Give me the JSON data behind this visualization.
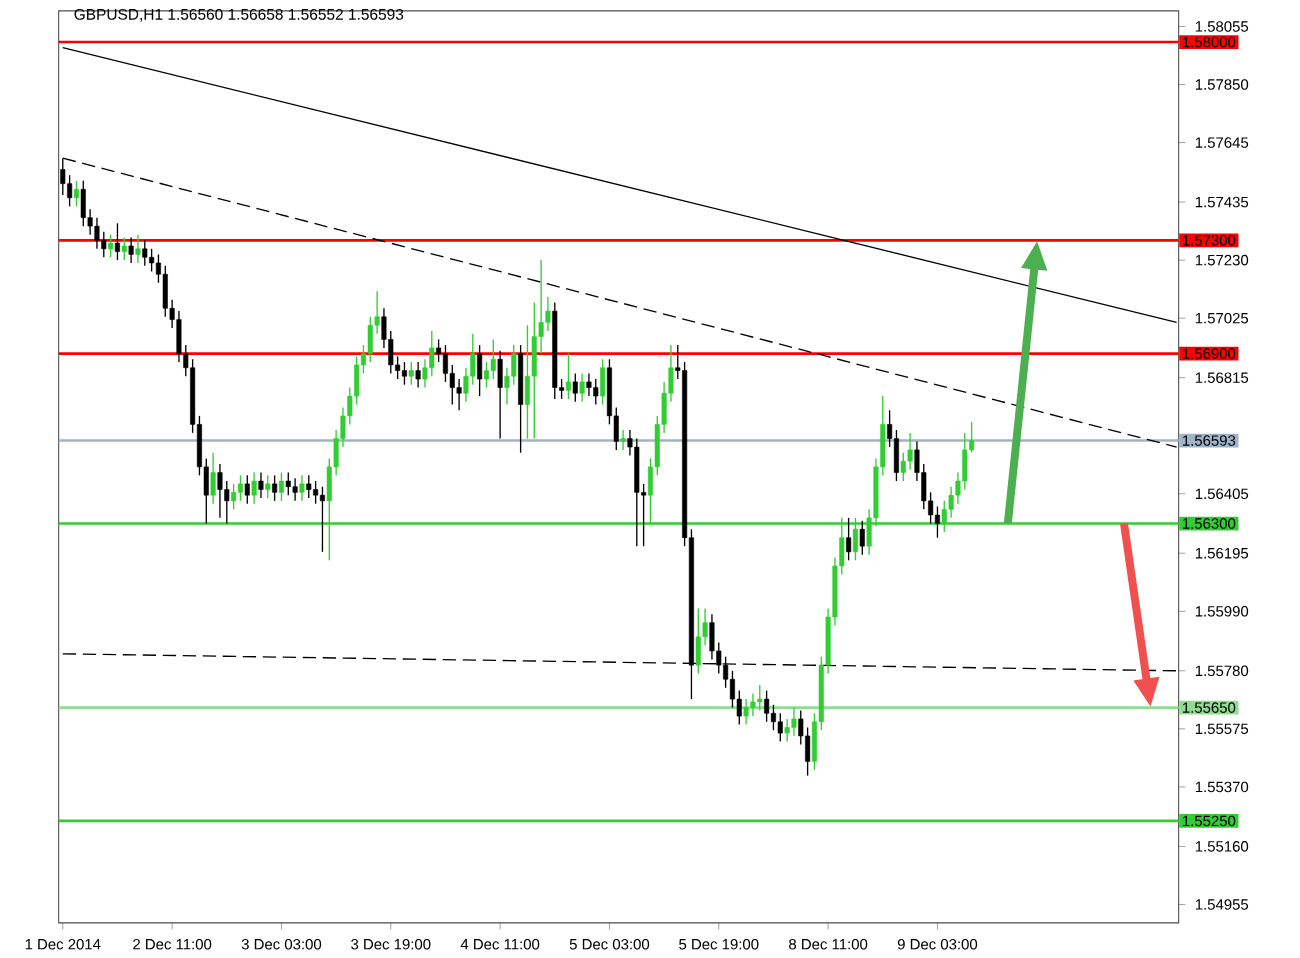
{
  "chart_data": {
    "type": "candlestick",
    "title": "GBPUSD,H1  1.56560 1.56658 1.56552 1.56593",
    "categories": [
      "1 Dec 2014",
      null,
      null,
      null,
      null,
      null,
      null,
      null,
      null,
      null,
      null,
      null,
      null,
      null,
      null,
      null,
      "2 Dec 11:00",
      null,
      null,
      null,
      null,
      null,
      null,
      null,
      null,
      null,
      null,
      null,
      null,
      null,
      null,
      null,
      "3 Dec 03:00",
      null,
      null,
      null,
      null,
      null,
      null,
      null,
      null,
      null,
      null,
      null,
      null,
      null,
      null,
      null,
      "3 Dec 19:00",
      null,
      null,
      null,
      null,
      null,
      null,
      null,
      null,
      null,
      null,
      null,
      null,
      null,
      null,
      null,
      "4 Dec 11:00",
      null,
      null,
      null,
      null,
      null,
      null,
      null,
      null,
      null,
      null,
      null,
      null,
      null,
      null,
      null,
      "5 Dec 03:00",
      null,
      null,
      null,
      null,
      null,
      null,
      null,
      null,
      null,
      null,
      null,
      null,
      null,
      null,
      null,
      "5 Dec 19:00",
      null,
      null,
      null,
      null,
      null,
      null,
      null,
      null,
      null,
      null,
      null,
      null,
      null,
      null,
      null,
      "8 Dec 11:00",
      null,
      null,
      null,
      null,
      null,
      null,
      null,
      null,
      null,
      null,
      null,
      null,
      null,
      null,
      null,
      "9 Dec 03:00",
      null,
      null,
      null,
      null,
      null,
      null,
      null,
      null,
      null,
      null,
      null,
      null,
      null,
      null,
      null,
      null,
      null,
      null,
      null,
      null,
      null,
      null,
      null,
      null,
      null,
      null,
      null,
      null,
      null,
      null,
      null,
      null,
      null,
      null,
      null
    ],
    "ohlc": [
      [
        1.5755,
        1.5759,
        1.5746,
        1.575
      ],
      [
        1.575,
        1.5753,
        1.5742,
        1.5745
      ],
      [
        1.5745,
        1.5751,
        1.5742,
        1.5748
      ],
      [
        1.5748,
        1.5751,
        1.5735,
        1.5738
      ],
      [
        1.5738,
        1.5741,
        1.5732,
        1.5735
      ],
      [
        1.5735,
        1.5738,
        1.5727,
        1.573
      ],
      [
        1.573,
        1.5733,
        1.5724,
        1.5727
      ],
      [
        1.5727,
        1.5732,
        1.5724,
        1.5729
      ],
      [
        1.5729,
        1.5736,
        1.5723,
        1.5726
      ],
      [
        1.5726,
        1.5731,
        1.5723,
        1.5728
      ],
      [
        1.5728,
        1.5731,
        1.5722,
        1.5725
      ],
      [
        1.5725,
        1.5732,
        1.5722,
        1.5727
      ],
      [
        1.5727,
        1.573,
        1.5721,
        1.5724
      ],
      [
        1.5724,
        1.5727,
        1.5719,
        1.5722
      ],
      [
        1.5722,
        1.5725,
        1.5715,
        1.5718
      ],
      [
        1.5718,
        1.5721,
        1.5703,
        1.5706
      ],
      [
        1.5706,
        1.5709,
        1.5699,
        1.5702
      ],
      [
        1.5702,
        1.5705,
        1.5687,
        1.569
      ],
      [
        1.569,
        1.5693,
        1.5682,
        1.5685
      ],
      [
        1.5685,
        1.5688,
        1.5662,
        1.5665
      ],
      [
        1.5665,
        1.5668,
        1.5647,
        1.565
      ],
      [
        1.565,
        1.5653,
        1.563,
        1.564
      ],
      [
        1.564,
        1.5655,
        1.5637,
        1.5648
      ],
      [
        1.5648,
        1.5651,
        1.5632,
        1.5642
      ],
      [
        1.5642,
        1.5645,
        1.563,
        1.5638
      ],
      [
        1.5638,
        1.5644,
        1.5635,
        1.5641
      ],
      [
        1.5641,
        1.5647,
        1.5638,
        1.5644
      ],
      [
        1.5644,
        1.5647,
        1.5637,
        1.564
      ],
      [
        1.564,
        1.5648,
        1.5637,
        1.5645
      ],
      [
        1.5645,
        1.5648,
        1.5639,
        1.5642
      ],
      [
        1.5642,
        1.5647,
        1.5639,
        1.5644
      ],
      [
        1.5644,
        1.5647,
        1.5638,
        1.5641
      ],
      [
        1.5641,
        1.5648,
        1.5638,
        1.5645
      ],
      [
        1.5645,
        1.5648,
        1.564,
        1.5643
      ],
      [
        1.5643,
        1.5646,
        1.5638,
        1.5641
      ],
      [
        1.5641,
        1.5647,
        1.5638,
        1.5644
      ],
      [
        1.5644,
        1.5647,
        1.5639,
        1.5642
      ],
      [
        1.5642,
        1.5645,
        1.5637,
        1.564
      ],
      [
        1.564,
        1.5643,
        1.562,
        1.5638
      ],
      [
        1.5638,
        1.5653,
        1.5617,
        1.565
      ],
      [
        1.565,
        1.5663,
        1.5647,
        1.566
      ],
      [
        1.566,
        1.5671,
        1.5657,
        1.5668
      ],
      [
        1.5668,
        1.5678,
        1.5665,
        1.5675
      ],
      [
        1.5675,
        1.5689,
        1.5672,
        1.5686
      ],
      [
        1.5686,
        1.5693,
        1.5683,
        1.569
      ],
      [
        1.569,
        1.5703,
        1.5687,
        1.57
      ],
      [
        1.57,
        1.5712,
        1.5697,
        1.5703
      ],
      [
        1.5703,
        1.5706,
        1.5692,
        1.5695
      ],
      [
        1.5695,
        1.5698,
        1.5683,
        1.5686
      ],
      [
        1.5686,
        1.5689,
        1.5681,
        1.5684
      ],
      [
        1.5684,
        1.5687,
        1.5679,
        1.5682
      ],
      [
        1.5682,
        1.5687,
        1.5679,
        1.5684
      ],
      [
        1.5684,
        1.5687,
        1.5678,
        1.5681
      ],
      [
        1.5681,
        1.5688,
        1.5678,
        1.5685
      ],
      [
        1.5685,
        1.5698,
        1.5682,
        1.5692
      ],
      [
        1.5692,
        1.5695,
        1.5687,
        1.569
      ],
      [
        1.569,
        1.5693,
        1.568,
        1.5683
      ],
      [
        1.5683,
        1.5686,
        1.5672,
        1.5678
      ],
      [
        1.5678,
        1.5681,
        1.567,
        1.5676
      ],
      [
        1.5676,
        1.5685,
        1.5673,
        1.5682
      ],
      [
        1.5682,
        1.5697,
        1.5679,
        1.569
      ],
      [
        1.569,
        1.5693,
        1.5675,
        1.5681
      ],
      [
        1.5681,
        1.5687,
        1.5678,
        1.5684
      ],
      [
        1.5684,
        1.5695,
        1.5681,
        1.5688
      ],
      [
        1.5688,
        1.5691,
        1.566,
        1.5678
      ],
      [
        1.5678,
        1.5685,
        1.5672,
        1.5682
      ],
      [
        1.5682,
        1.5693,
        1.5679,
        1.569
      ],
      [
        1.569,
        1.5693,
        1.5655,
        1.5672
      ],
      [
        1.5672,
        1.57,
        1.566,
        1.5682
      ],
      [
        1.5682,
        1.5708,
        1.566,
        1.5696
      ],
      [
        1.5696,
        1.5723,
        1.569,
        1.5701
      ],
      [
        1.5701,
        1.571,
        1.5698,
        1.5705
      ],
      [
        1.5705,
        1.5708,
        1.5674,
        1.5678
      ],
      [
        1.5678,
        1.5681,
        1.5674,
        1.5677
      ],
      [
        1.5677,
        1.569,
        1.5674,
        1.568
      ],
      [
        1.568,
        1.5683,
        1.5673,
        1.5676
      ],
      [
        1.5676,
        1.5683,
        1.5673,
        1.568
      ],
      [
        1.568,
        1.5683,
        1.5675,
        1.5678
      ],
      [
        1.5678,
        1.5681,
        1.5672,
        1.5675
      ],
      [
        1.5675,
        1.5688,
        1.5672,
        1.5685
      ],
      [
        1.5685,
        1.5688,
        1.5665,
        1.5668
      ],
      [
        1.5668,
        1.5671,
        1.5656,
        1.5659
      ],
      [
        1.5659,
        1.5663,
        1.5656,
        1.566
      ],
      [
        1.566,
        1.5663,
        1.5654,
        1.5657
      ],
      [
        1.5657,
        1.566,
        1.5622,
        1.5641
      ],
      [
        1.5641,
        1.5644,
        1.5622,
        1.564
      ],
      [
        1.564,
        1.5653,
        1.563,
        1.565
      ],
      [
        1.565,
        1.5668,
        1.5647,
        1.5665
      ],
      [
        1.5665,
        1.568,
        1.5662,
        1.5676
      ],
      [
        1.5676,
        1.5693,
        1.5673,
        1.5685
      ],
      [
        1.5685,
        1.5693,
        1.5681,
        1.5684
      ],
      [
        1.5684,
        1.5687,
        1.5622,
        1.5625
      ],
      [
        1.5625,
        1.5628,
        1.5568,
        1.558
      ],
      [
        1.558,
        1.56,
        1.5577,
        1.559
      ],
      [
        1.559,
        1.56,
        1.5587,
        1.5595
      ],
      [
        1.5595,
        1.5598,
        1.5582,
        1.5585
      ],
      [
        1.5585,
        1.5588,
        1.5577,
        1.558
      ],
      [
        1.558,
        1.5583,
        1.5572,
        1.5575
      ],
      [
        1.5575,
        1.5578,
        1.5565,
        1.5568
      ],
      [
        1.5568,
        1.5571,
        1.5559,
        1.5562
      ],
      [
        1.5562,
        1.5568,
        1.5559,
        1.5565
      ],
      [
        1.5565,
        1.557,
        1.5562,
        1.5567
      ],
      [
        1.5567,
        1.5573,
        1.5564,
        1.5568
      ],
      [
        1.5568,
        1.5571,
        1.556,
        1.5563
      ],
      [
        1.5563,
        1.5566,
        1.5557,
        1.556
      ],
      [
        1.556,
        1.5563,
        1.5553,
        1.5556
      ],
      [
        1.5556,
        1.5561,
        1.5553,
        1.5558
      ],
      [
        1.5558,
        1.5565,
        1.5555,
        1.5561
      ],
      [
        1.5561,
        1.5564,
        1.5552,
        1.5555
      ],
      [
        1.5555,
        1.5558,
        1.5541,
        1.5546
      ],
      [
        1.5546,
        1.5563,
        1.5543,
        1.556
      ],
      [
        1.556,
        1.5583,
        1.5557,
        1.558
      ],
      [
        1.558,
        1.56,
        1.5577,
        1.5597
      ],
      [
        1.5597,
        1.5618,
        1.5594,
        1.5615
      ],
      [
        1.5615,
        1.5632,
        1.5612,
        1.5625
      ],
      [
        1.5625,
        1.5632,
        1.5617,
        1.562
      ],
      [
        1.562,
        1.5632,
        1.5617,
        1.5628
      ],
      [
        1.5628,
        1.5631,
        1.5619,
        1.5622
      ],
      [
        1.5622,
        1.5635,
        1.5619,
        1.5632
      ],
      [
        1.5632,
        1.5653,
        1.5629,
        1.565
      ],
      [
        1.565,
        1.5675,
        1.5647,
        1.5665
      ],
      [
        1.5665,
        1.567,
        1.5657,
        1.566
      ],
      [
        1.566,
        1.5663,
        1.5645,
        1.5648
      ],
      [
        1.5648,
        1.5655,
        1.5645,
        1.5652
      ],
      [
        1.5652,
        1.5662,
        1.5649,
        1.5656
      ],
      [
        1.5656,
        1.5659,
        1.5645,
        1.5648
      ],
      [
        1.5648,
        1.5651,
        1.5635,
        1.5638
      ],
      [
        1.5638,
        1.5641,
        1.563,
        1.5633
      ],
      [
        1.5633,
        1.5636,
        1.5625,
        1.563
      ],
      [
        1.563,
        1.5638,
        1.5627,
        1.5635
      ],
      [
        1.5635,
        1.5643,
        1.5632,
        1.564
      ],
      [
        1.564,
        1.5648,
        1.5637,
        1.5645
      ],
      [
        1.5645,
        1.5662,
        1.5642,
        1.5656
      ],
      [
        1.5656,
        1.56658,
        1.56552,
        1.56593
      ],
      null,
      null,
      null,
      null,
      null,
      null,
      null,
      null,
      null,
      null,
      null,
      null,
      null,
      null,
      null,
      null,
      null,
      null,
      null,
      null,
      null,
      null,
      null,
      null,
      null,
      null,
      null,
      null,
      null,
      null
    ],
    "colors": [
      "#000000",
      "#000000",
      "#32cd32",
      "#000000",
      "#000000",
      "#000000",
      "#000000",
      "#32cd32",
      "#000000",
      "#32cd32",
      "#000000",
      "#32cd32",
      "#000000",
      "#000000",
      "#000000",
      "#000000",
      "#000000",
      "#000000",
      "#000000",
      "#000000",
      "#000000",
      "#000000",
      "#32cd32",
      "#000000",
      "#000000",
      "#32cd32",
      "#32cd32",
      "#000000",
      "#32cd32",
      "#000000",
      "#32cd32",
      "#000000",
      "#32cd32",
      "#000000",
      "#000000",
      "#32cd32",
      "#000000",
      "#000000",
      "#000000",
      "#32cd32",
      "#32cd32",
      "#32cd32",
      "#32cd32",
      "#32cd32",
      "#32cd32",
      "#32cd32",
      "#32cd32",
      "#000000",
      "#000000",
      "#000000",
      "#000000",
      "#32cd32",
      "#000000",
      "#32cd32",
      "#32cd32",
      "#000000",
      "#000000",
      "#000000",
      "#000000",
      "#32cd32",
      "#32cd32",
      "#000000",
      "#32cd32",
      "#32cd32",
      "#000000",
      "#32cd32",
      "#32cd32",
      "#000000",
      "#32cd32",
      "#32cd32",
      "#32cd32",
      "#32cd32",
      "#000000",
      "#000000",
      "#32cd32",
      "#000000",
      "#32cd32",
      "#000000",
      "#000000",
      "#32cd32",
      "#000000",
      "#000000",
      "#32cd32",
      "#000000",
      "#000000",
      "#000000",
      "#32cd32",
      "#32cd32",
      "#32cd32",
      "#32cd32",
      "#000000",
      "#000000",
      "#000000",
      "#32cd32",
      "#32cd32",
      "#000000",
      "#000000",
      "#000000",
      "#000000",
      "#000000",
      "#32cd32",
      "#32cd32",
      "#32cd32",
      "#000000",
      "#000000",
      "#000000",
      "#32cd32",
      "#32cd32",
      "#000000",
      "#000000",
      "#32cd32",
      "#32cd32",
      "#32cd32",
      "#32cd32",
      "#32cd32",
      "#000000",
      "#32cd32",
      "#000000",
      "#32cd32",
      "#32cd32",
      "#32cd32",
      "#000000",
      "#000000",
      "#32cd32",
      "#32cd32",
      "#000000",
      "#000000",
      "#000000",
      "#000000",
      "#32cd32",
      "#32cd32",
      "#32cd32",
      "#32cd32",
      "#32cd32",
      null,
      null,
      null,
      null,
      null,
      null,
      null,
      null,
      null,
      null,
      null,
      null,
      null,
      null,
      null,
      null,
      null,
      null,
      null,
      null,
      null,
      null,
      null,
      null,
      null,
      null,
      null,
      null,
      null,
      null
    ],
    "series": [
      {
        "type": "line",
        "color": "#000000",
        "line_style": "solid",
        "values": [
          1.5798,
          null,
          null,
          null,
          null,
          null,
          null,
          null,
          null,
          null,
          null,
          null,
          null,
          null,
          null,
          null,
          null,
          null,
          null,
          null,
          null,
          null,
          null,
          null,
          null,
          null,
          null,
          null,
          null,
          null,
          null,
          null,
          null,
          null,
          null,
          null,
          null,
          null,
          null,
          null,
          null,
          null,
          null,
          null,
          null,
          null,
          null,
          null,
          null,
          null,
          null,
          null,
          null,
          null,
          null,
          null,
          null,
          null,
          null,
          null,
          null,
          null,
          null,
          null,
          null,
          null,
          null,
          null,
          null,
          null,
          null,
          null,
          null,
          null,
          null,
          null,
          null,
          null,
          null,
          null,
          null,
          null,
          null,
          null,
          null,
          null,
          null,
          null,
          null,
          null,
          null,
          null,
          null,
          null,
          null,
          null,
          null,
          null,
          null,
          null,
          null,
          null,
          null,
          null,
          null,
          null,
          null,
          null,
          null,
          null,
          null,
          null,
          null,
          null,
          null,
          null,
          null,
          null,
          null,
          null,
          null,
          null,
          null,
          null,
          null,
          null,
          null,
          null,
          null,
          null,
          null,
          null,
          null,
          null,
          null,
          null,
          null,
          null,
          null,
          null,
          null,
          null,
          null,
          null,
          null,
          null,
          null,
          null,
          null,
          null,
          null,
          null,
          null,
          null,
          null,
          null,
          null,
          null,
          null,
          null,
          null,
          null,
          null,
          1.5701
        ]
      },
      {
        "type": "line",
        "color": "#000000",
        "line_style": "dashed",
        "values": [
          1.5759,
          null,
          null,
          null,
          null,
          null,
          null,
          null,
          null,
          null,
          null,
          null,
          null,
          null,
          null,
          null,
          null,
          null,
          null,
          null,
          null,
          null,
          null,
          null,
          null,
          null,
          null,
          null,
          null,
          null,
          null,
          null,
          null,
          null,
          null,
          null,
          null,
          null,
          null,
          null,
          null,
          null,
          null,
          null,
          null,
          null,
          null,
          null,
          null,
          null,
          null,
          null,
          null,
          null,
          null,
          null,
          null,
          null,
          null,
          null,
          null,
          null,
          null,
          null,
          null,
          null,
          null,
          null,
          null,
          null,
          null,
          null,
          null,
          null,
          null,
          null,
          null,
          null,
          null,
          null,
          null,
          null,
          null,
          null,
          null,
          null,
          null,
          null,
          null,
          null,
          null,
          null,
          null,
          null,
          null,
          null,
          null,
          null,
          null,
          null,
          null,
          null,
          null,
          null,
          null,
          null,
          null,
          null,
          null,
          null,
          null,
          null,
          null,
          null,
          null,
          null,
          null,
          null,
          null,
          null,
          null,
          null,
          null,
          null,
          null,
          null,
          null,
          null,
          null,
          null,
          null,
          null,
          null,
          null,
          null,
          null,
          null,
          null,
          null,
          null,
          null,
          null,
          null,
          null,
          null,
          null,
          null,
          null,
          null,
          null,
          null,
          null,
          null,
          null,
          null,
          null,
          null,
          null,
          null,
          null,
          null,
          null,
          null,
          1.5657
        ]
      },
      {
        "type": "line",
        "color": "#000000",
        "line_style": "dashed",
        "values": [
          1.5584,
          null,
          null,
          null,
          null,
          null,
          null,
          null,
          null,
          null,
          null,
          null,
          null,
          null,
          null,
          null,
          null,
          null,
          null,
          null,
          null,
          null,
          null,
          null,
          null,
          null,
          null,
          null,
          null,
          null,
          null,
          null,
          null,
          null,
          null,
          null,
          null,
          null,
          null,
          null,
          null,
          null,
          null,
          null,
          null,
          null,
          null,
          null,
          null,
          null,
          null,
          null,
          null,
          null,
          null,
          null,
          null,
          null,
          null,
          null,
          null,
          null,
          null,
          null,
          null,
          null,
          null,
          null,
          null,
          null,
          null,
          null,
          null,
          null,
          null,
          null,
          null,
          null,
          null,
          null,
          null,
          null,
          null,
          null,
          null,
          null,
          null,
          null,
          null,
          null,
          null,
          null,
          null,
          null,
          null,
          null,
          null,
          null,
          null,
          null,
          null,
          null,
          null,
          null,
          null,
          null,
          null,
          null,
          null,
          null,
          null,
          null,
          null,
          null,
          null,
          null,
          null,
          null,
          null,
          null,
          null,
          null,
          null,
          null,
          null,
          null,
          null,
          null,
          null,
          null,
          null,
          null,
          null,
          null,
          null,
          null,
          null,
          null,
          null,
          null,
          null,
          null,
          null,
          null,
          null,
          null,
          null,
          null,
          null,
          null,
          null,
          null,
          null,
          null,
          null,
          null,
          null,
          null,
          null,
          null,
          null,
          null,
          null,
          1.5578
        ]
      }
    ],
    "ref_lines": [
      {
        "axis": "y",
        "value": 1.58,
        "label": "1.58000",
        "color": "#ff0000"
      },
      {
        "axis": "y",
        "value": 1.573,
        "label": "1.57300",
        "color": "#ff0000"
      },
      {
        "axis": "y",
        "value": 1.569,
        "label": "1.56900",
        "color": "#ff0000"
      },
      {
        "axis": "y",
        "value": 1.56593,
        "label": "1.56593",
        "color": "#a0b4c8"
      },
      {
        "axis": "y",
        "value": 1.563,
        "label": "1.56300",
        "color": "#32cd32"
      },
      {
        "axis": "y",
        "value": 1.5565,
        "label": "1.55650",
        "color": "#90dd90"
      },
      {
        "axis": "y",
        "value": 1.5525,
        "label": "1.55250",
        "color": "#32cd32"
      }
    ],
    "ylim": [
      1.5489,
      1.5811
    ],
    "yticks": [
      1.58055,
      {
        "value": 1.5785,
        "label": "1.57850"
      },
      1.57645,
      1.57435,
      {
        "value": 1.5723,
        "label": "1.57230"
      },
      1.57025,
      1.56815,
      1.56405,
      1.56195,
      {
        "value": 1.5599,
        "label": "1.55990"
      },
      {
        "value": 1.5578,
        "label": "1.55780"
      },
      1.55575,
      {
        "value": 1.5537,
        "label": "1.55370"
      },
      {
        "value": 1.5516,
        "label": "1.55160"
      },
      1.54955
    ],
    "grid": false,
    "marker": "none"
  }
}
